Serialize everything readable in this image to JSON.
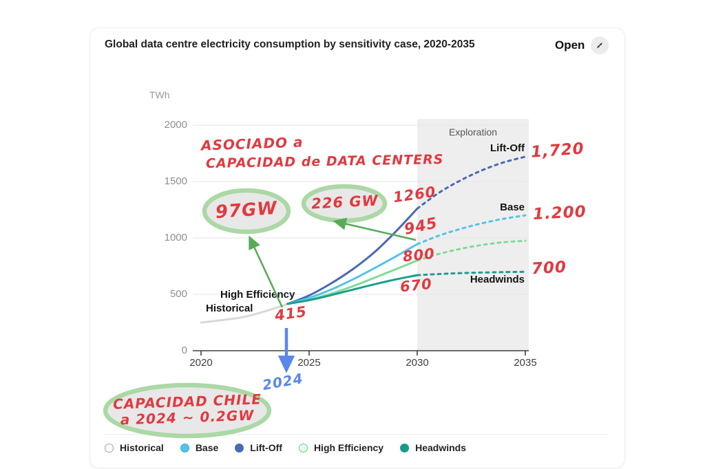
{
  "header": {
    "title": "Global data centre electricity consumption by sensitivity case, 2020-2035",
    "open_label": "Open"
  },
  "chart": {
    "unit_label": "TWh",
    "exploration_label": "Exploration",
    "curve_labels": {
      "lift_off": "Lift-Off",
      "base": "Base",
      "headwinds": "Headwinds",
      "high_efficiency": "High Efficiency",
      "historical": "Historical"
    }
  },
  "chart_data": {
    "type": "line",
    "title": "Global data centre electricity consumption by sensitivity case, 2020-2035",
    "ylabel": "TWh",
    "xlim": [
      2020,
      2035
    ],
    "ylim": [
      0,
      2000
    ],
    "x_ticks": [
      "2020",
      "2025",
      "2030",
      "2035"
    ],
    "y_ticks": [
      "0",
      "500",
      "1000",
      "1500",
      "2000"
    ],
    "grid": true,
    "legend_position": "bottom",
    "exploration_region": [
      2030,
      2035
    ],
    "series": [
      {
        "name": "Historical",
        "color": "#d8d8d8",
        "style": "solid",
        "x": [
          2020,
          2021,
          2022,
          2023,
          2024
        ],
        "y": [
          250,
          272,
          300,
          352,
          415
        ]
      },
      {
        "name": "Lift-Off",
        "color": "#4a68b4",
        "dashed_after": 2030,
        "x": [
          2024,
          2025,
          2026,
          2027,
          2028,
          2029,
          2030,
          2031,
          2032,
          2033,
          2034,
          2035
        ],
        "y": [
          415,
          490,
          595,
          720,
          870,
          1055,
          1260,
          1400,
          1510,
          1600,
          1670,
          1720
        ]
      },
      {
        "name": "Base",
        "color": "#54c3e8",
        "dashed_after": 2030,
        "x": [
          2024,
          2025,
          2026,
          2027,
          2028,
          2029,
          2030,
          2031,
          2032,
          2033,
          2034,
          2035
        ],
        "y": [
          415,
          468,
          540,
          630,
          730,
          835,
          945,
          1020,
          1080,
          1130,
          1170,
          1200
        ]
      },
      {
        "name": "High Efficiency",
        "color": "#7edc96",
        "dashed_after": 2030,
        "x": [
          2024,
          2025,
          2026,
          2027,
          2028,
          2029,
          2030,
          2031,
          2032,
          2033,
          2034,
          2035
        ],
        "y": [
          415,
          452,
          505,
          570,
          645,
          722,
          800,
          858,
          903,
          938,
          962,
          975
        ]
      },
      {
        "name": "Headwinds",
        "color": "#1b9e8e",
        "dashed_after": 2030,
        "x": [
          2024,
          2025,
          2026,
          2027,
          2028,
          2029,
          2030,
          2031,
          2032,
          2033,
          2034,
          2035
        ],
        "y": [
          415,
          448,
          492,
          540,
          588,
          632,
          670,
          680,
          688,
          693,
          697,
          700
        ]
      }
    ]
  },
  "annotations": {
    "note_line1": "ASOCIADO a",
    "note_line2": "CAPACIDAD de DATA CENTERS",
    "bubble_97gw": "97GW",
    "bubble_226gw": "226 GW",
    "val_2030_lift_off": "1260",
    "val_2030_base": "945",
    "val_2030_high_efficiency": "800",
    "val_2030_headwinds": "670",
    "val_2035_lift_off": "1,720",
    "val_2035_base": "1.200",
    "val_2035_headwinds": "700",
    "val_2024_all": "415",
    "arrow_year": "2024",
    "chile_line1": "CAPACIDAD CHILE",
    "chile_line2": "a 2024 ~ 0.2GW"
  },
  "legend": {
    "items": [
      {
        "label": "Historical",
        "fill": "#ffffff",
        "border": "#a0a0a0"
      },
      {
        "label": "Base",
        "fill": "#52c2e8",
        "border": "#35b1da"
      },
      {
        "label": "Lift-Off",
        "fill": "#4a68b4",
        "border": "#4a68b4"
      },
      {
        "label": "High Efficiency",
        "fill": "#e8fbe9",
        "border": "#5fd080"
      },
      {
        "label": "Headwinds",
        "fill": "#189b8b",
        "border": "#189b8b"
      }
    ]
  },
  "colors": {
    "historical": "#d8d8d8",
    "base": "#54c3e8",
    "lift_off": "#4a68b4",
    "high_efficiency": "#7edc96",
    "headwinds": "#1b9e8e",
    "annotation_red": "#e03a40",
    "annotation_green": "#58ab58",
    "annotation_blue": "#5b86ea",
    "exploration_bg": "#eeeeee"
  }
}
